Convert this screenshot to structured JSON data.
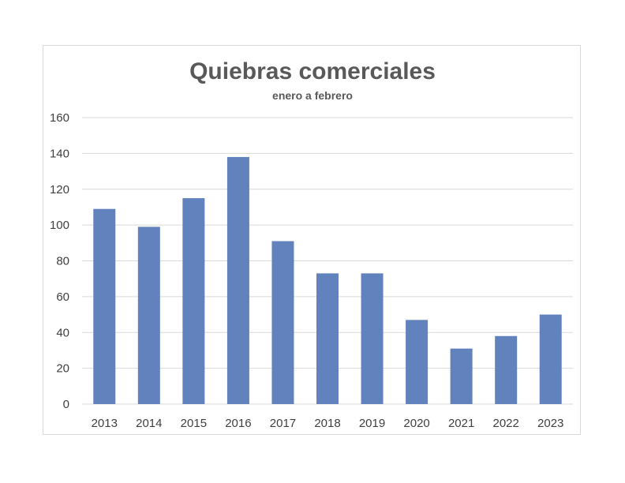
{
  "chart_data": {
    "type": "bar",
    "title": "Quiebras comerciales",
    "subtitle": "enero a febrero",
    "xlabel": "",
    "ylabel": "",
    "categories": [
      "2013",
      "2014",
      "2015",
      "2016",
      "2017",
      "2018",
      "2019",
      "2020",
      "2021",
      "2022",
      "2023"
    ],
    "values": [
      109,
      99,
      115,
      138,
      91,
      73,
      73,
      47,
      31,
      38,
      50
    ],
    "ylim": [
      0,
      160
    ],
    "yticks": [
      0,
      20,
      40,
      60,
      80,
      100,
      120,
      140,
      160
    ],
    "grid": true,
    "legend": "none",
    "bar_color": "#6282bd",
    "grid_color": "#d9d9d9",
    "text_color": "#404040"
  }
}
